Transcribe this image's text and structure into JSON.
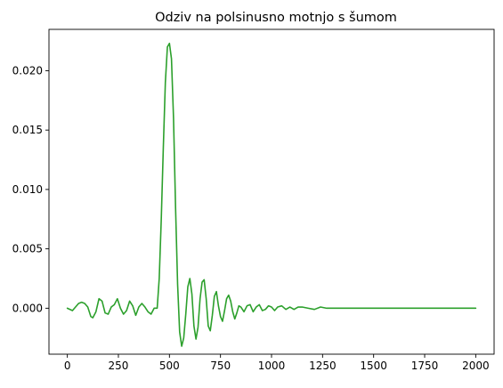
{
  "chart_data": {
    "type": "line",
    "title": "Odziv na polsinusno motnjo s šumom",
    "xlabel": "",
    "ylabel": "",
    "xlim": [
      -90,
      2090
    ],
    "ylim": [
      -0.00387,
      0.02348
    ],
    "xticks": [
      0,
      250,
      500,
      750,
      1000,
      1250,
      1500,
      1750,
      2000
    ],
    "xtick_labels": [
      "0",
      "250",
      "500",
      "750",
      "1000",
      "1250",
      "1500",
      "1750",
      "2000"
    ],
    "yticks": [
      0.0,
      0.005,
      0.01,
      0.015,
      0.02
    ],
    "ytick_labels": [
      "0.000",
      "0.005",
      "0.010",
      "0.015",
      "0.020"
    ],
    "grid": false,
    "legend": "none",
    "series": [
      {
        "color": "#2ca02c",
        "x": [
          0,
          25,
          40,
          55,
          70,
          85,
          100,
          115,
          125,
          140,
          155,
          170,
          185,
          200,
          215,
          230,
          245,
          260,
          275,
          290,
          305,
          320,
          335,
          350,
          365,
          380,
          395,
          410,
          425,
          440,
          450,
          460,
          470,
          480,
          490,
          500,
          510,
          520,
          530,
          540,
          550,
          560,
          570,
          580,
          590,
          600,
          610,
          620,
          630,
          640,
          650,
          660,
          670,
          680,
          690,
          700,
          710,
          720,
          730,
          740,
          750,
          760,
          770,
          780,
          790,
          800,
          810,
          820,
          830,
          840,
          850,
          865,
          880,
          895,
          910,
          925,
          940,
          955,
          970,
          985,
          1000,
          1015,
          1030,
          1050,
          1070,
          1090,
          1110,
          1130,
          1150,
          1180,
          1210,
          1240,
          1270,
          1300,
          1350,
          1400,
          1500,
          1600,
          1700,
          1800,
          1900,
          2000
        ],
        "y": [
          0.0,
          -0.0002,
          0.0001,
          0.0004,
          0.0005,
          0.0004,
          0.0001,
          -0.0007,
          -0.0008,
          -0.0003,
          0.0008,
          0.0006,
          -0.0004,
          -0.0005,
          0.0001,
          0.0003,
          0.0008,
          0.0,
          -0.0005,
          -0.0002,
          0.0006,
          0.0002,
          -0.0006,
          0.0001,
          0.0004,
          0.0001,
          -0.0003,
          -0.0005,
          0.0,
          0.0,
          0.0025,
          0.0075,
          0.0135,
          0.019,
          0.022,
          0.0223,
          0.021,
          0.016,
          0.0085,
          0.002,
          -0.002,
          -0.0032,
          -0.0025,
          -0.0005,
          0.0018,
          0.0025,
          0.0012,
          -0.0015,
          -0.0026,
          -0.0016,
          0.0008,
          0.0022,
          0.0024,
          0.0008,
          -0.0015,
          -0.0019,
          -0.0006,
          0.001,
          0.0014,
          0.0002,
          -0.0007,
          -0.0011,
          -0.0002,
          0.0008,
          0.0011,
          0.0006,
          -0.0003,
          -0.0009,
          -0.0004,
          0.0002,
          0.0001,
          -0.0003,
          0.0002,
          0.0003,
          -0.0003,
          0.0001,
          0.0003,
          -0.0002,
          -0.0001,
          0.0002,
          0.0001,
          -0.0002,
          0.0001,
          0.0002,
          -0.0001,
          0.0001,
          -0.0001,
          0.0001,
          0.0001,
          0.0,
          -0.0001,
          0.0001,
          0.0,
          0.0,
          0.0,
          0.0,
          0.0,
          0.0,
          0.0,
          0.0,
          0.0,
          0.0
        ]
      }
    ]
  }
}
